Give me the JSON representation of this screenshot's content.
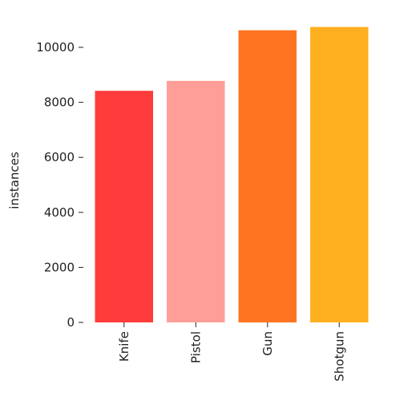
{
  "chart_data": {
    "type": "bar",
    "categories": [
      "Knife",
      "Pistol",
      "Gun",
      "Shotgun"
    ],
    "values": [
      8420,
      8780,
      10620,
      10740
    ],
    "colors": [
      "#ff3c3c",
      "#ff9e99",
      "#ff7420",
      "#ffb020"
    ],
    "title": "",
    "xlabel": "",
    "ylabel": "instances",
    "ylim": [
      0,
      10700
    ],
    "yticks": [
      0,
      2000,
      4000,
      6000,
      8000,
      10000
    ],
    "grid": false,
    "legend": "none"
  }
}
